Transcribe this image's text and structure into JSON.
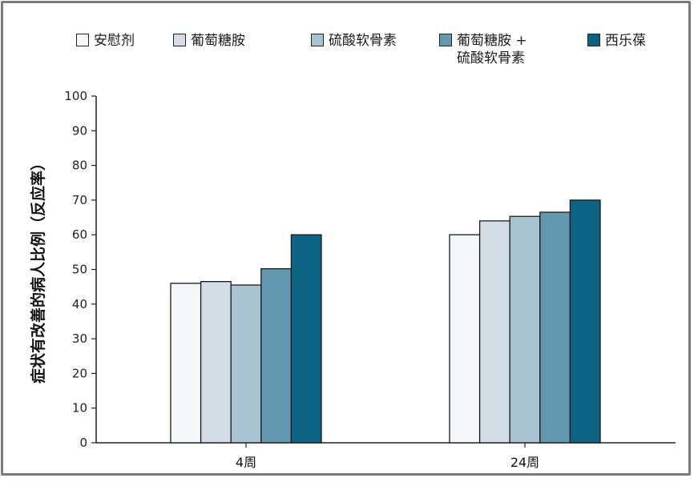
{
  "chart_data": {
    "type": "bar",
    "ylabel": "症状有改善的病人比例（反应率）",
    "xlabel": "",
    "ylim": [
      0,
      100
    ],
    "yticks": [
      0,
      10,
      20,
      30,
      40,
      50,
      60,
      70,
      80,
      90,
      100
    ],
    "categories": [
      "4周",
      "24周"
    ],
    "legend_position": "top",
    "series": [
      {
        "name": "安慰剂",
        "color": "#f4f7fa",
        "values": [
          46,
          60
        ]
      },
      {
        "name": "葡萄糖胺",
        "color": "#d3dde5",
        "values": [
          46.5,
          64
        ]
      },
      {
        "name": "硫酸软骨素",
        "color": "#a8c4d2",
        "values": [
          45.5,
          65.3
        ]
      },
      {
        "name": "葡萄糖胺 +\n硫酸软骨素",
        "color": "#6298b0",
        "values": [
          50.2,
          66.5
        ]
      },
      {
        "name": "西乐葆",
        "color": "#0d6383",
        "values": [
          60,
          70
        ]
      }
    ]
  }
}
